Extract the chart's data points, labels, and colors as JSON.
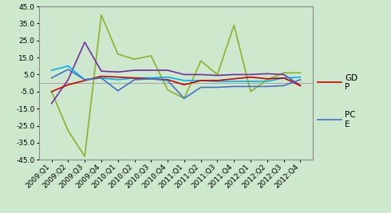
{
  "categories": [
    "2009:Q1",
    "2009:Q2",
    "2009:Q3",
    "2009:Q4",
    "2010:Q1",
    "2010:Q2",
    "2010:Q3",
    "2010:Q4",
    "2011:Q1",
    "2011:Q2",
    "2011:Q3",
    "2011:Q4",
    "2012:Q1",
    "2012:Q2",
    "2012:Q3",
    "2012:Q4"
  ],
  "gdp": [
    -5.0,
    -1.0,
    1.5,
    4.0,
    3.5,
    3.0,
    2.5,
    2.0,
    -1.0,
    1.5,
    1.5,
    2.5,
    3.5,
    2.5,
    3.0,
    -1.5
  ],
  "pce": [
    3.0,
    8.0,
    2.0,
    3.0,
    -4.5,
    2.0,
    2.5,
    1.5,
    -9.0,
    -2.5,
    -2.5,
    -2.0,
    -2.0,
    -2.0,
    -1.5,
    2.0
  ],
  "series3_olive": [
    -5.0,
    -28.0,
    -43.0,
    40.0,
    17.0,
    14.0,
    16.0,
    -4.0,
    -9.0,
    13.0,
    5.0,
    34.0,
    -5.0,
    2.0,
    6.0,
    6.0
  ],
  "series4_purple": [
    -12.0,
    2.0,
    24.0,
    7.0,
    6.5,
    7.5,
    7.5,
    7.5,
    5.0,
    5.0,
    4.5,
    5.0,
    5.0,
    5.5,
    5.0,
    -1.5
  ],
  "background_color": "#cde8cd",
  "plot_bg_color": "#cde8cd",
  "gdp_color": "#cc0000",
  "pce_color": "#4472c4",
  "olive_color": "#8db030",
  "purple_color": "#7030a0",
  "cyan_color": "#00b0f0",
  "hline_color": "#aaaaaa",
  "ylim": [
    -45.0,
    45.0
  ],
  "yticks": [
    -45.0,
    -35.0,
    -25.0,
    -15.0,
    -5.0,
    5.0,
    15.0,
    25.0,
    35.0,
    45.0
  ],
  "tick_fontsize": 6.5,
  "legend_fontsize": 7.5,
  "line_width": 1.2
}
